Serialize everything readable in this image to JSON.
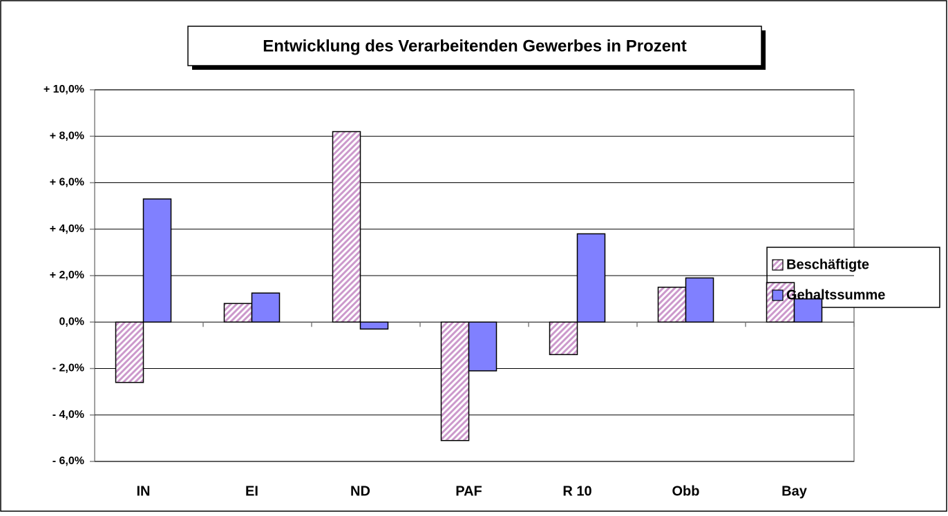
{
  "chart_data": {
    "type": "bar",
    "title": "Entwicklung des Verarbeitenden Gewerbes in Prozent",
    "categories": [
      "IN",
      "EI",
      "ND",
      "PAF",
      "R 10",
      "Obb",
      "Bay"
    ],
    "series": [
      {
        "name": "Beschäftigte",
        "color": "#cc99cc",
        "pattern": "hatch",
        "values": [
          -2.6,
          0.8,
          8.2,
          -5.1,
          -1.4,
          1.5,
          1.7
        ]
      },
      {
        "name": "Gehaltssumme",
        "color": "#8080ff",
        "values": [
          5.3,
          1.25,
          -0.3,
          -2.1,
          3.8,
          1.9,
          1.0
        ]
      }
    ],
    "ylim": [
      -6,
      10
    ],
    "yticks": [
      {
        "value": -6,
        "label": "- 6,0%"
      },
      {
        "value": -4,
        "label": "- 4,0%"
      },
      {
        "value": -2,
        "label": "- 2,0%"
      },
      {
        "value": 0,
        "label": "0,0%"
      },
      {
        "value": 2,
        "label": "+ 2,0%"
      },
      {
        "value": 4,
        "label": "+ 4,0%"
      },
      {
        "value": 6,
        "label": "+ 6,0%"
      },
      {
        "value": 8,
        "label": "+ 8,0%"
      },
      {
        "value": 10,
        "label": "+ 10,0%"
      }
    ],
    "grid": true,
    "legend": "right"
  }
}
